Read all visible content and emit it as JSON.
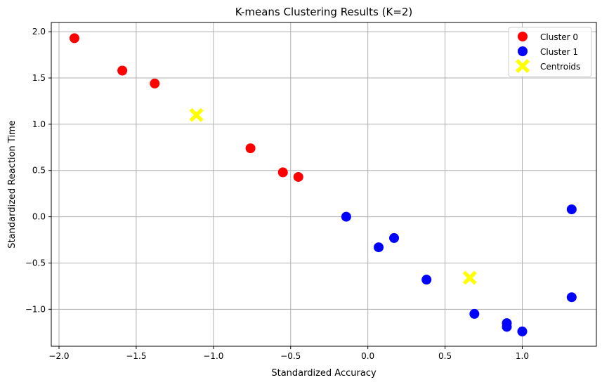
{
  "chart_data": {
    "type": "scatter",
    "title": "K-means Clustering Results (K=2)",
    "xlabel": "Standardized Accuracy",
    "ylabel": "Standardized Reaction Time",
    "xlim": [
      -2.05,
      1.48
    ],
    "ylim": [
      -1.4,
      2.1
    ],
    "xticks": [
      -2.0,
      -1.5,
      -1.0,
      -0.5,
      0.0,
      0.5,
      1.0
    ],
    "xtick_labels": [
      "−2.0",
      "−1.5",
      "−1.0",
      "−0.5",
      "0.0",
      "0.5",
      "1.0"
    ],
    "yticks": [
      -1.0,
      -0.5,
      0.0,
      0.5,
      1.0,
      1.5,
      2.0
    ],
    "ytick_labels": [
      "−1.0",
      "−0.5",
      "0.0",
      "0.5",
      "1.0",
      "1.5",
      "2.0"
    ],
    "grid": true,
    "legend_position": "top-right",
    "series": [
      {
        "name": "Cluster 0",
        "color": "#ff0000",
        "marker": "circle",
        "points": [
          [
            -1.9,
            1.93
          ],
          [
            -1.59,
            1.58
          ],
          [
            -1.38,
            1.44
          ],
          [
            -0.76,
            0.74
          ],
          [
            -0.55,
            0.48
          ],
          [
            -0.45,
            0.43
          ]
        ]
      },
      {
        "name": "Cluster 1",
        "color": "#0000ff",
        "marker": "circle",
        "points": [
          [
            -0.14,
            0.0
          ],
          [
            0.07,
            -0.33
          ],
          [
            0.17,
            -0.23
          ],
          [
            0.38,
            -0.68
          ],
          [
            0.69,
            -1.05
          ],
          [
            0.9,
            -1.15
          ],
          [
            0.9,
            -1.19
          ],
          [
            1.0,
            -1.24
          ],
          [
            1.32,
            -0.87
          ],
          [
            1.32,
            0.08
          ]
        ]
      },
      {
        "name": "Centroids",
        "color": "#ffff00",
        "marker": "x",
        "points": [
          [
            -1.11,
            1.1
          ],
          [
            0.66,
            -0.66
          ]
        ]
      }
    ]
  }
}
